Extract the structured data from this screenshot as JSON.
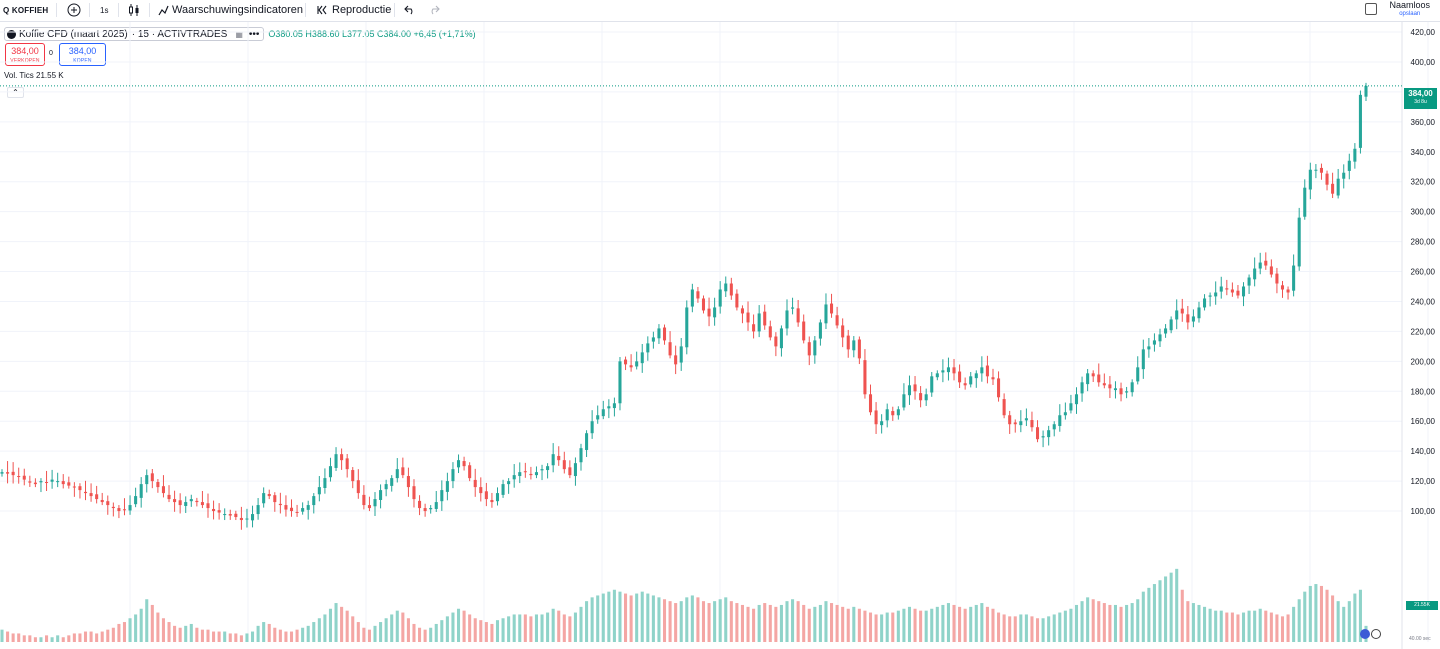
{
  "toolbar": {
    "symbol_search": "Q KOFFIEH",
    "interval": "1s",
    "indicators_label": "Waarschuwingsindicatoren",
    "replay_label": "Reproductie",
    "layout_name": "Naamloos",
    "save_label": "opslaan"
  },
  "legend": {
    "title": "Koffie CFD (maart 2025)",
    "interval": "· 15 · ACTIVTRADES",
    "ohlc": "O380.05 H388.60 L377.05 C384.00 +6,45 (+1,71%)",
    "sell_price": "384,00",
    "sell_label": "VERKOPEN",
    "spread": "0",
    "buy_price": "384,00",
    "buy_label": "KOPEN",
    "volume": "Vol. Tics 21.55 K"
  },
  "price_label": {
    "price": "384,00",
    "countdown": "3d 8u"
  },
  "volume_label": "21.55K",
  "bottom_label": "40.00 sec",
  "colors": {
    "up": "#26a69a",
    "down": "#ef5350",
    "up_vol": "#8fd3c9",
    "down_vol": "#f4a6a4",
    "grid": "#f0f3fa",
    "last_price": "#089981"
  },
  "chart_data": {
    "type": "candlestick",
    "y_axis": {
      "min": 80,
      "max": 420,
      "ticks": [
        100,
        120,
        140,
        160,
        180,
        200,
        220,
        240,
        260,
        280,
        300,
        320,
        340,
        360,
        380,
        400,
        420
      ]
    },
    "last_price": 384,
    "closes": [
      126,
      125,
      124,
      123,
      121,
      119,
      118,
      120,
      119,
      121,
      120,
      118,
      117,
      116,
      114,
      112,
      110,
      108,
      106,
      104,
      102,
      100,
      101,
      104,
      110,
      118,
      124,
      120,
      116,
      112,
      108,
      106,
      104,
      106,
      108,
      106,
      104,
      102,
      100,
      99,
      98,
      97,
      96,
      94,
      95,
      98,
      104,
      112,
      110,
      106,
      104,
      101,
      100,
      99,
      102,
      104,
      110,
      116,
      122,
      130,
      138,
      134,
      128,
      120,
      112,
      104,
      102,
      108,
      114,
      118,
      122,
      128,
      124,
      116,
      108,
      102,
      100,
      102,
      106,
      114,
      120,
      128,
      134,
      130,
      122,
      116,
      112,
      108,
      106,
      112,
      118,
      120,
      124,
      126,
      126,
      124,
      126,
      128,
      130,
      138,
      134,
      128,
      124,
      132,
      142,
      152,
      160,
      164,
      168,
      170,
      172,
      200,
      198,
      196,
      200,
      206,
      212,
      216,
      222,
      214,
      204,
      198,
      210,
      236,
      248,
      242,
      234,
      230,
      236,
      248,
      252,
      244,
      236,
      232,
      226,
      220,
      232,
      224,
      216,
      210,
      222,
      234,
      236,
      226,
      214,
      204,
      214,
      226,
      238,
      232,
      224,
      216,
      208,
      214,
      202,
      178,
      166,
      158,
      160,
      168,
      164,
      168,
      178,
      184,
      180,
      174,
      178,
      190,
      192,
      194,
      196,
      192,
      186,
      184,
      190,
      192,
      196,
      190,
      188,
      176,
      164,
      158,
      158,
      160,
      162,
      156,
      148,
      150,
      154,
      158,
      164,
      166,
      172,
      178,
      186,
      192,
      190,
      186,
      184,
      182,
      182,
      178,
      180,
      186,
      196,
      208,
      210,
      214,
      218,
      222,
      228,
      234,
      232,
      226,
      230,
      236,
      242,
      244,
      246,
      250,
      248,
      246,
      244,
      250,
      256,
      262,
      266,
      264,
      258,
      252,
      248,
      246,
      264,
      296,
      316,
      328,
      328,
      326,
      318,
      312,
      322,
      326,
      334,
      342,
      378,
      384
    ],
    "volumes": [
      88,
      86,
      84,
      84,
      82,
      82,
      80,
      80,
      82,
      80,
      82,
      80,
      82,
      84,
      84,
      86,
      86,
      84,
      86,
      88,
      90,
      94,
      96,
      100,
      104,
      110,
      120,
      114,
      106,
      100,
      96,
      92,
      90,
      92,
      94,
      90,
      88,
      88,
      86,
      86,
      86,
      84,
      84,
      82,
      84,
      86,
      92,
      96,
      94,
      90,
      88,
      86,
      86,
      88,
      90,
      92,
      96,
      100,
      104,
      110,
      116,
      112,
      108,
      102,
      96,
      90,
      88,
      92,
      96,
      100,
      104,
      108,
      106,
      100,
      94,
      90,
      88,
      90,
      94,
      98,
      102,
      106,
      110,
      108,
      104,
      100,
      98,
      96,
      94,
      98,
      100,
      102,
      104,
      104,
      104,
      102,
      104,
      104,
      106,
      110,
      108,
      104,
      102,
      106,
      112,
      118,
      122,
      124,
      126,
      128,
      130,
      128,
      126,
      124,
      126,
      128,
      126,
      124,
      122,
      120,
      118,
      116,
      118,
      122,
      124,
      122,
      118,
      116,
      118,
      120,
      122,
      118,
      116,
      114,
      112,
      110,
      114,
      116,
      114,
      112,
      114,
      118,
      120,
      118,
      114,
      110,
      112,
      114,
      118,
      116,
      114,
      112,
      110,
      112,
      110,
      108,
      106,
      104,
      104,
      106,
      106,
      108,
      110,
      112,
      110,
      108,
      108,
      110,
      112,
      114,
      116,
      114,
      112,
      110,
      112,
      114,
      116,
      112,
      110,
      106,
      104,
      102,
      102,
      104,
      104,
      102,
      100,
      100,
      102,
      104,
      106,
      108,
      110,
      114,
      118,
      122,
      120,
      118,
      116,
      114,
      114,
      112,
      114,
      116,
      120,
      128,
      132,
      136,
      140,
      144,
      148,
      152,
      130,
      118,
      116,
      114,
      112,
      110,
      108,
      108,
      106,
      106,
      104,
      106,
      108,
      108,
      110,
      108,
      106,
      104,
      102,
      104,
      112,
      120,
      128,
      134,
      136,
      134,
      130,
      124,
      118,
      112,
      118,
      126,
      130,
      92
    ]
  }
}
